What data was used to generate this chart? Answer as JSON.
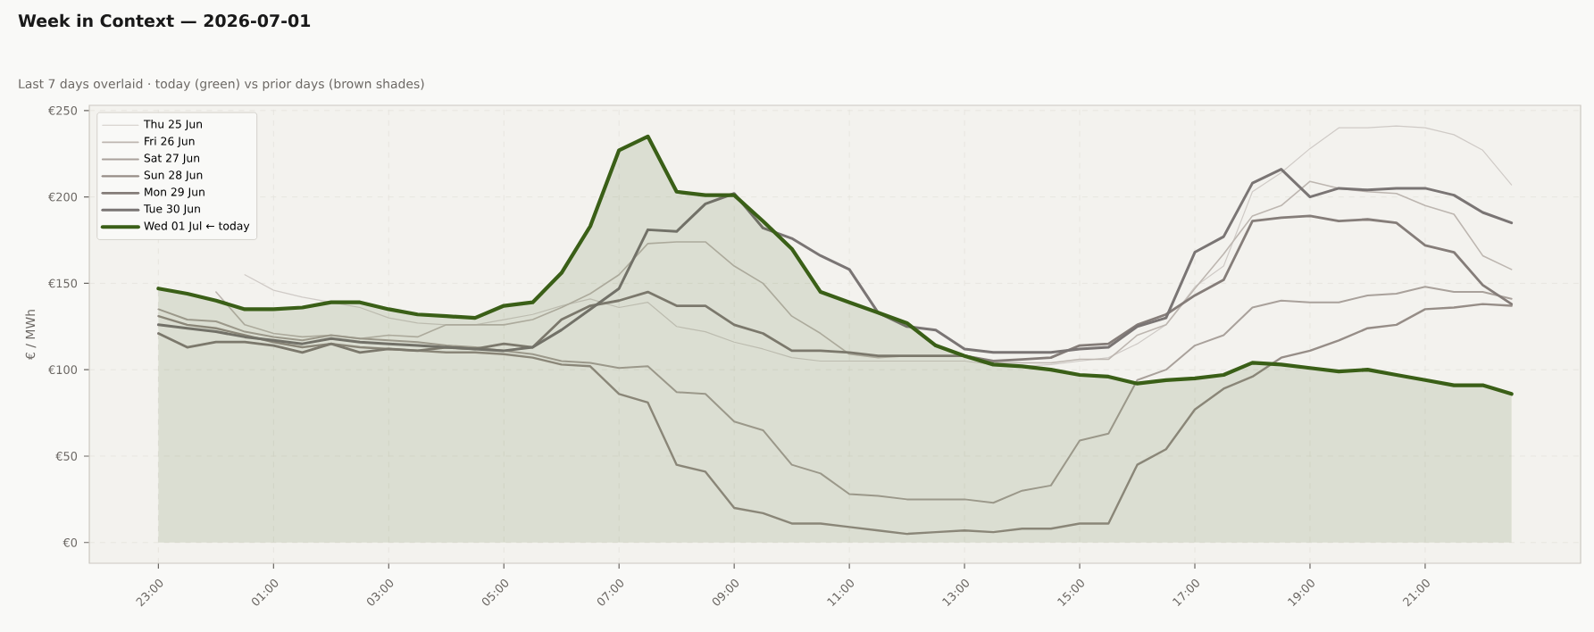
{
  "chart_data": {
    "type": "line",
    "title": "Week in Context — 2026-07-01",
    "subtitle": "Last 7 days overlaid  ·  today (green) vs prior days (brown shades)",
    "ylabel": "€ / MWh",
    "categories": [
      "23:00",
      null,
      null,
      null,
      "01:00",
      null,
      null,
      null,
      "03:00",
      null,
      null,
      null,
      "05:00",
      null,
      null,
      null,
      "07:00",
      null,
      null,
      null,
      "09:00",
      null,
      null,
      null,
      "11:00",
      null,
      null,
      null,
      "13:00",
      null,
      null,
      null,
      "15:00",
      null,
      null,
      null,
      "17:00",
      null,
      null,
      null,
      "19:00",
      null,
      null,
      null,
      "21:00",
      null,
      null,
      null
    ],
    "ylim": [
      -12,
      253
    ],
    "yticks": [
      {
        "value": 0,
        "label": "€0"
      },
      {
        "value": 50,
        "label": "€50"
      },
      {
        "value": 100,
        "label": "€100"
      },
      {
        "value": 150,
        "label": "€150"
      },
      {
        "value": 200,
        "label": "€200"
      },
      {
        "value": 250,
        "label": "€250"
      }
    ],
    "grid": true,
    "legend": "top left",
    "line_style": "solid",
    "series": [
      {
        "name": "Thu 25 Jun",
        "color": "#cfcac6",
        "values": [
          null,
          null,
          null,
          155,
          146,
          142,
          139,
          136,
          130,
          127,
          126,
          126,
          129,
          132,
          137,
          141,
          136,
          139,
          125,
          122,
          116,
          112,
          107,
          105,
          105,
          105,
          105,
          105,
          105,
          103,
          102,
          103,
          105,
          107,
          115,
          126,
          148,
          160,
          203,
          214,
          228,
          240,
          240,
          241,
          240,
          236,
          227,
          207
        ]
      },
      {
        "name": "Fri 26 Jun",
        "color": "#bdb6b0",
        "values": [
          null,
          null,
          145,
          126,
          121,
          119,
          120,
          118,
          120,
          119,
          126,
          126,
          126,
          129,
          136,
          144,
          155,
          173,
          174,
          174,
          160,
          150,
          131,
          121,
          109,
          107,
          108,
          108,
          108,
          104,
          104,
          104,
          106,
          106,
          120,
          126,
          147,
          167,
          189,
          195,
          209,
          205,
          203,
          202,
          195,
          190,
          166,
          158
        ]
      },
      {
        "name": "Sat 27 Jun",
        "color": "#a9a19b",
        "values": [
          135,
          129,
          128,
          122,
          119,
          117,
          120,
          118,
          117,
          116,
          114,
          113,
          111,
          109,
          105,
          104,
          101,
          102,
          87,
          86,
          70,
          65,
          45,
          40,
          28,
          27,
          25,
          25,
          25,
          23,
          30,
          33,
          59,
          63,
          94,
          100,
          114,
          120,
          136,
          140,
          139,
          139,
          143,
          144,
          148,
          145,
          145,
          141
        ]
      },
      {
        "name": "Sun 28 Jun",
        "color": "#968d87",
        "values": [
          131,
          126,
          124,
          120,
          116,
          113,
          115,
          113,
          112,
          111,
          110,
          110,
          109,
          107,
          103,
          102,
          86,
          81,
          45,
          41,
          20,
          17,
          11,
          11,
          9,
          7,
          5,
          6,
          7,
          6,
          8,
          8,
          11,
          11,
          45,
          54,
          77,
          89,
          96,
          107,
          111,
          117,
          124,
          126,
          135,
          136,
          138,
          137
        ]
      },
      {
        "name": "Mon 29 Jun",
        "color": "#857d79",
        "values": [
          121,
          113,
          116,
          116,
          114,
          110,
          115,
          110,
          112,
          111,
          113,
          112,
          115,
          113,
          129,
          137,
          140,
          145,
          137,
          137,
          126,
          121,
          111,
          111,
          110,
          108,
          108,
          108,
          108,
          105,
          106,
          107,
          114,
          115,
          126,
          132,
          143,
          152,
          186,
          188,
          189,
          186,
          187,
          185,
          172,
          168,
          149,
          138
        ]
      },
      {
        "name": "Tue 30 Jun",
        "color": "#7a7574",
        "values": [
          126,
          124,
          122,
          119,
          117,
          115,
          118,
          116,
          115,
          114,
          113,
          112,
          111,
          113,
          123,
          135,
          147,
          181,
          180,
          196,
          202,
          182,
          176,
          166,
          158,
          133,
          125,
          123,
          112,
          110,
          110,
          110,
          112,
          113,
          125,
          130,
          168,
          177,
          208,
          216,
          200,
          205,
          204,
          205,
          205,
          201,
          191,
          185
        ]
      },
      {
        "name": "Wed 01 Jul  ← today",
        "color": "#3a5f17",
        "type": "area",
        "values": [
          147,
          144,
          140,
          135,
          135,
          136,
          139,
          139,
          135,
          132,
          131,
          130,
          137,
          139,
          156,
          183,
          227,
          235,
          203,
          201,
          201,
          186,
          170,
          145,
          139,
          133,
          127,
          114,
          108,
          103,
          102,
          100,
          97,
          96,
          92,
          94,
          95,
          97,
          104,
          103,
          101,
          99,
          100,
          97,
          94,
          91,
          91,
          86
        ]
      }
    ]
  }
}
